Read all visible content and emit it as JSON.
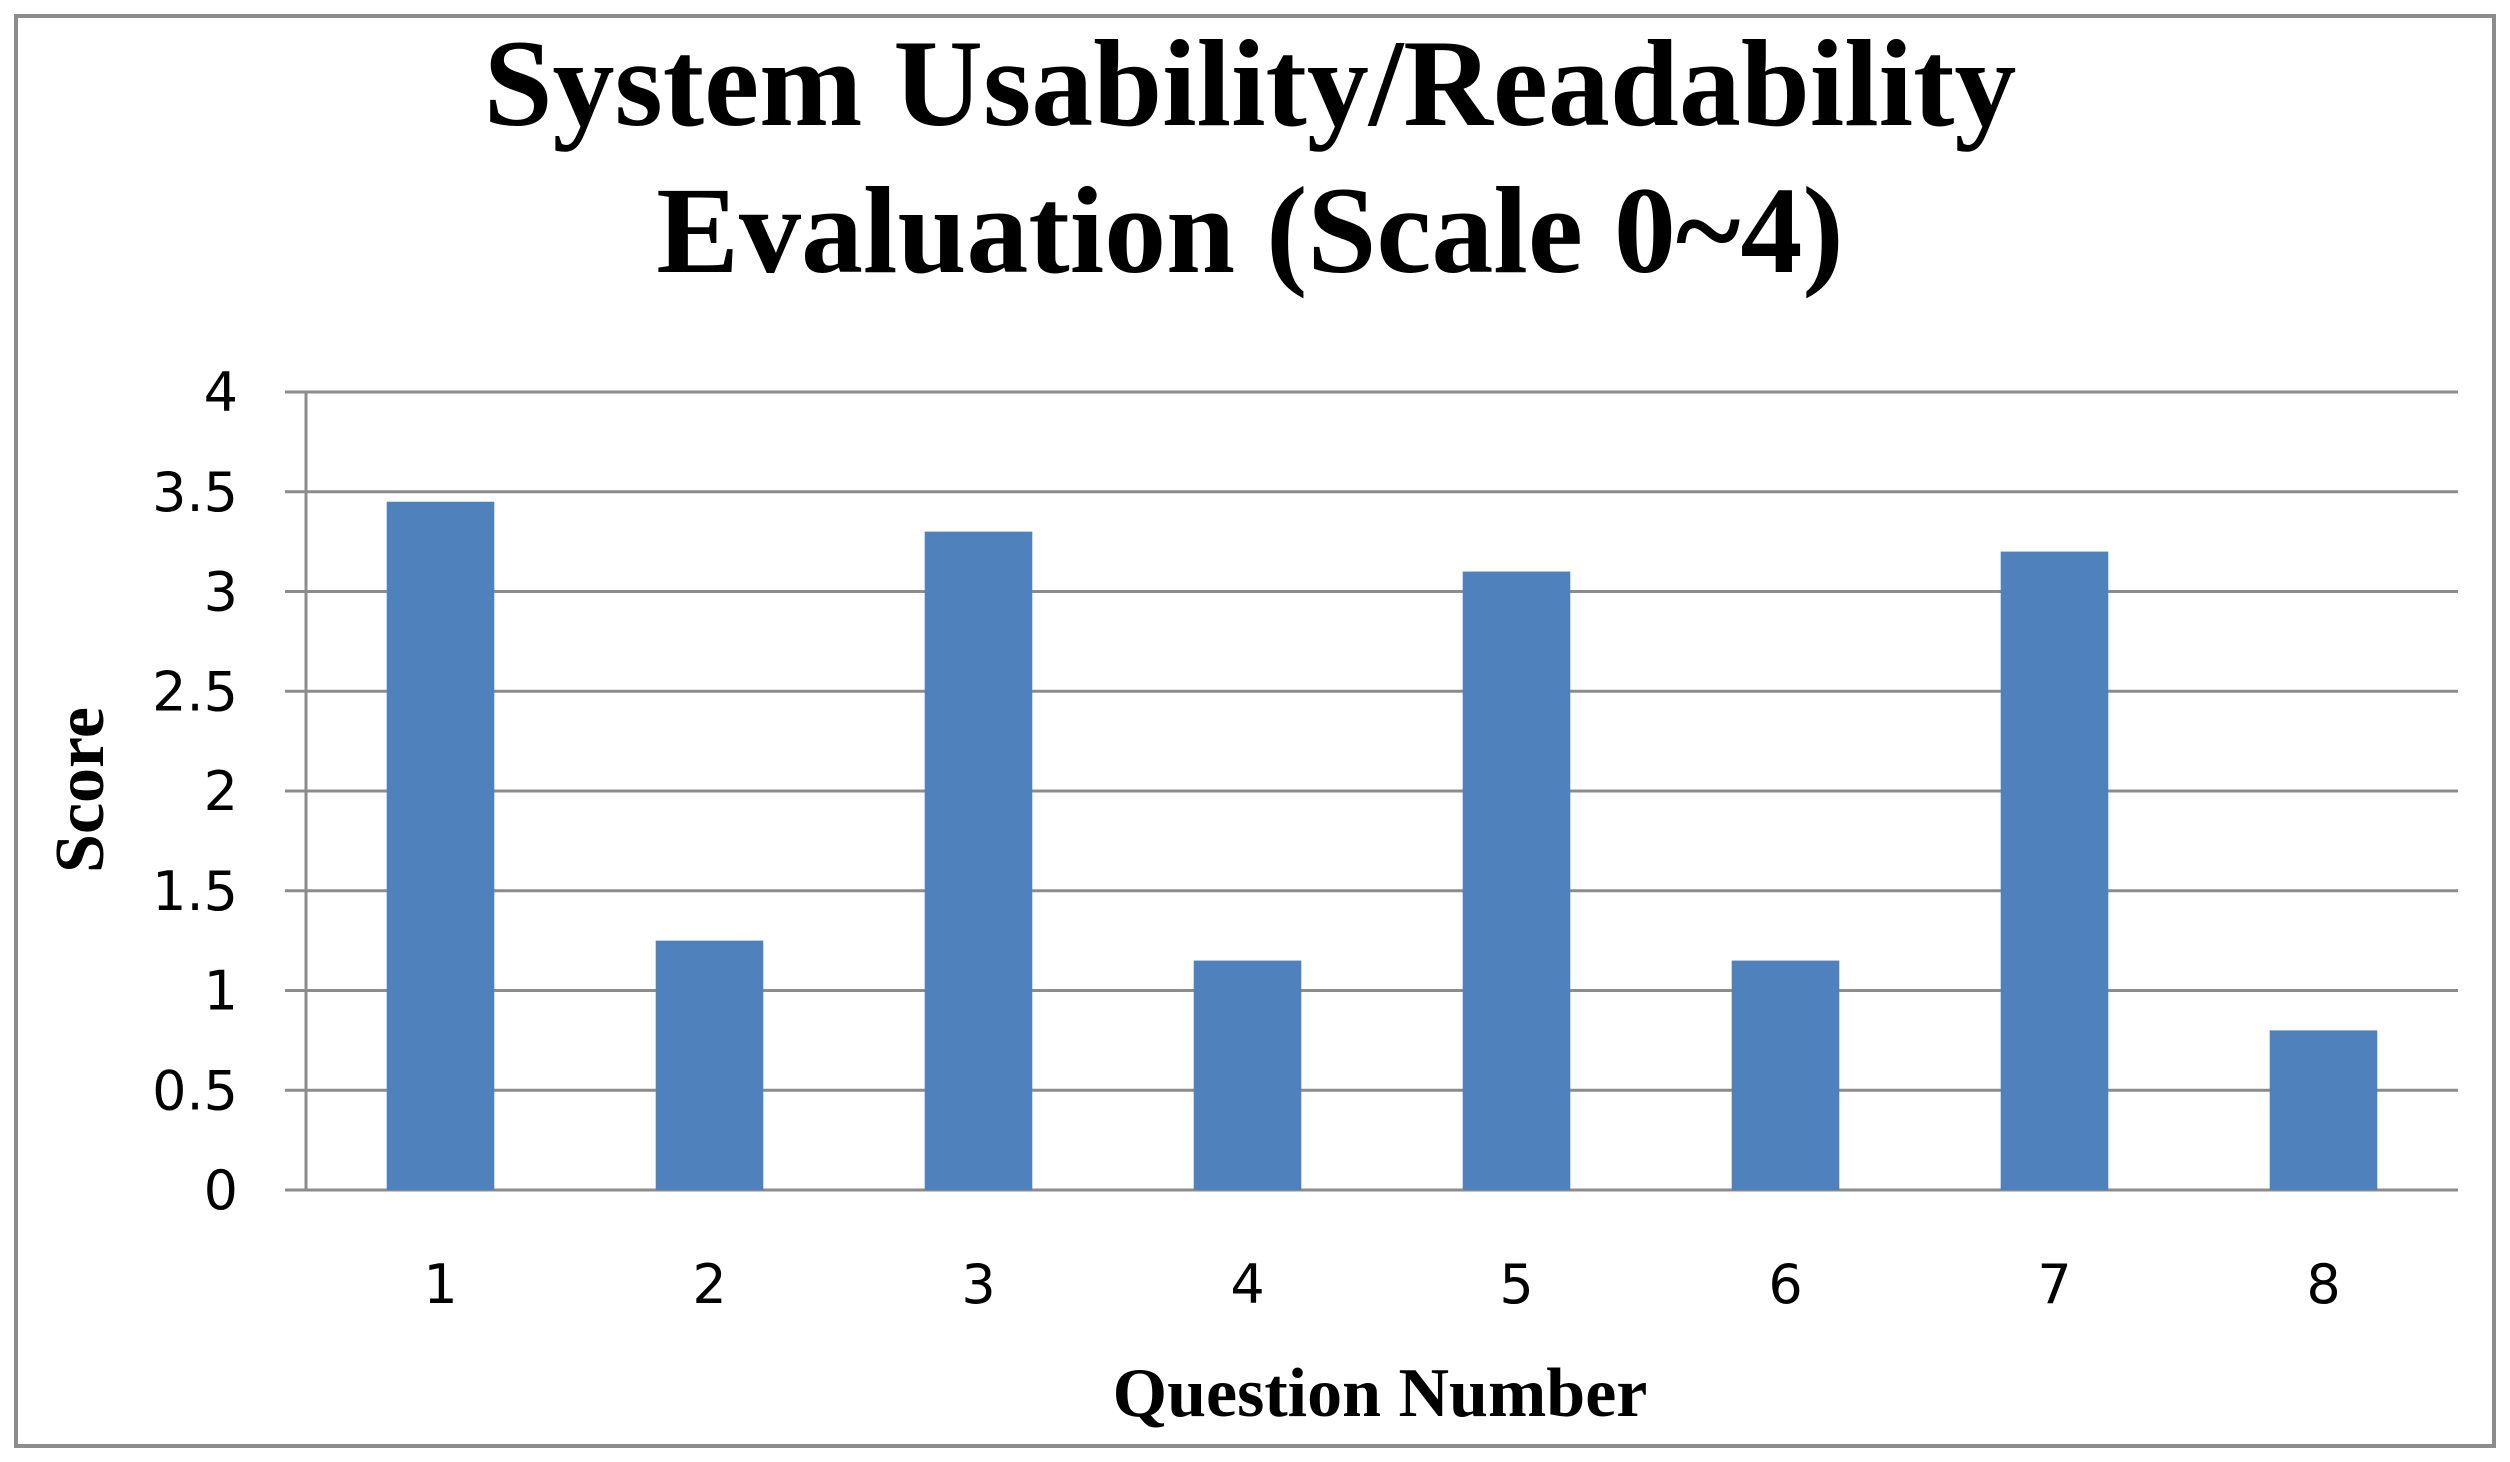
{
  "chart_data": {
    "type": "bar",
    "title_lines": [
      "System Usability/Readability",
      "Evaluation (Scale 0~4)"
    ],
    "xlabel": "Question Number",
    "ylabel": "Score",
    "categories": [
      "1",
      "2",
      "3",
      "4",
      "5",
      "6",
      "7",
      "8"
    ],
    "values": [
      3.45,
      1.25,
      3.3,
      1.15,
      3.1,
      1.15,
      3.2,
      0.8
    ],
    "ylim": [
      0,
      4
    ],
    "yticks": [
      "0",
      "0.5",
      "1",
      "1.5",
      "2",
      "2.5",
      "3",
      "3.5",
      "4"
    ],
    "grid": true,
    "legend": "none",
    "bar_color": "#4f81bd",
    "border_color": "#8c8c8c"
  }
}
